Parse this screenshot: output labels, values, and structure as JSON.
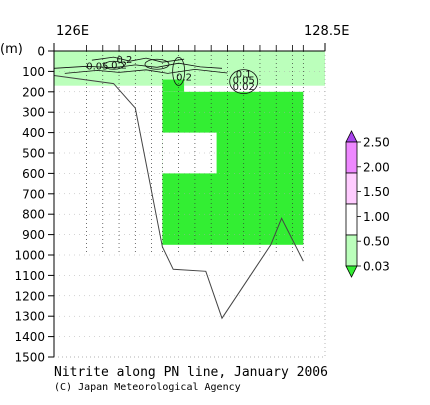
{
  "chart_data": {
    "type": "heatmap",
    "title": "Nitrite along PN line, January 2006",
    "credit": "(C) Japan Meteorological Agency",
    "x_axis": {
      "left_label": "126E",
      "right_label": "128.5E",
      "range": [
        126.0,
        128.5
      ]
    },
    "y_axis": {
      "unit_label": "(m)",
      "range": [
        0,
        1500
      ],
      "inverted": true,
      "ticks": [
        0,
        100,
        200,
        300,
        400,
        500,
        600,
        700,
        800,
        900,
        1000,
        1100,
        1200,
        1300,
        1400,
        1500
      ]
    },
    "colorbar": {
      "labels": [
        "2.50",
        "2.00",
        "1.50",
        "1.00",
        "0.50",
        "0.03"
      ],
      "levels": [
        0.03,
        0.5,
        1.0,
        1.5,
        2.0,
        2.5
      ],
      "colors": [
        "#33ee33",
        "#bbffbb",
        "#ffffff",
        "#ffccff",
        "#ee88ff",
        "#aa44ee"
      ]
    },
    "contour_labels": [
      {
        "text": "0.05",
        "lon": 126.4,
        "depth": 90
      },
      {
        "text": "0.2",
        "lon": 126.65,
        "depth": 60
      },
      {
        "text": "0.2",
        "lon": 126.6,
        "depth": 85
      },
      {
        "text": "0.2",
        "lon": 127.2,
        "depth": 145
      },
      {
        "text": "0.1",
        "lon": 127.75,
        "depth": 130
      },
      {
        "text": "0.05",
        "lon": 127.75,
        "depth": 160
      },
      {
        "text": "0.02",
        "lon": 127.75,
        "depth": 190
      }
    ],
    "shading": {
      "light_green_band": {
        "from_lon": 126.0,
        "to_lon": 128.5,
        "depth_min": 0,
        "depth_max": 170,
        "level": "0.03-0.50"
      },
      "bright_green_body": {
        "from_lon": 127.0,
        "to_lon": 128.3,
        "depth_min": 200,
        "depth_max": 950,
        "level": ">0.03"
      },
      "unsampled_window": {
        "from_lon": 127.0,
        "to_lon": 127.5,
        "depth_min": 400,
        "depth_max": 600
      }
    },
    "bottom_topography": [
      {
        "lon": 126.0,
        "depth": 120
      },
      {
        "lon": 126.55,
        "depth": 160
      },
      {
        "lon": 126.75,
        "depth": 280
      },
      {
        "lon": 127.0,
        "depth": 960
      },
      {
        "lon": 127.1,
        "depth": 1070
      },
      {
        "lon": 127.4,
        "depth": 1080
      },
      {
        "lon": 127.55,
        "depth": 1310
      },
      {
        "lon": 128.0,
        "depth": 950
      },
      {
        "lon": 128.1,
        "depth": 820
      },
      {
        "lon": 128.3,
        "depth": 1030
      }
    ],
    "stations_lon": [
      126.3,
      126.45,
      126.6,
      126.75,
      126.9,
      127.0,
      127.15,
      127.3,
      127.45,
      127.6,
      127.75,
      127.9,
      128.05,
      128.2,
      128.3
    ]
  }
}
